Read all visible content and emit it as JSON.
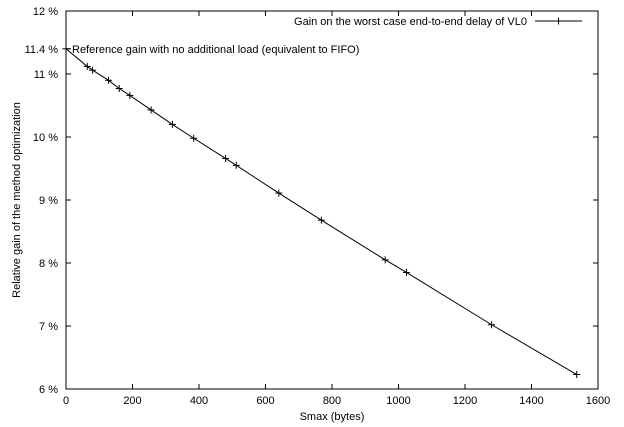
{
  "chart_data": {
    "type": "line",
    "title": "",
    "xlabel": "Smax (bytes)",
    "ylabel": "Relative gain of the method optimization",
    "xlim": [
      0,
      1600
    ],
    "ylim": [
      6,
      12
    ],
    "x_ticks": [
      0,
      200,
      400,
      600,
      800,
      1000,
      1200,
      1400,
      1600
    ],
    "x_tick_labels": [
      "0",
      "200",
      "400",
      "600",
      "800",
      "1000",
      "1200",
      "1400",
      "1600"
    ],
    "y_ticks": [
      6,
      7,
      8,
      9,
      10,
      11,
      12
    ],
    "y_tick_labels": [
      "6 %",
      "7 %",
      "8 %",
      "9 %",
      "10 %",
      "11 %",
      "12 %"
    ],
    "extra_y_tick": {
      "value": 11.4,
      "label": "11.4 %"
    },
    "grid": false,
    "legend_position": "top-right",
    "series": [
      {
        "name": "Gain on the worst case end-to-end delay of VL0",
        "color": "#000000",
        "marker": "plus",
        "x": [
          0,
          64,
          80,
          128,
          160,
          192,
          256,
          320,
          384,
          480,
          512,
          640,
          768,
          960,
          1024,
          1280,
          1536
        ],
        "y": [
          11.4,
          11.12,
          11.06,
          10.9,
          10.77,
          10.66,
          10.43,
          10.2,
          9.98,
          9.66,
          9.55,
          9.11,
          8.68,
          8.05,
          7.85,
          7.02,
          6.23
        ]
      }
    ],
    "annotations": [
      {
        "text": "Reference gain with no additional load (equivalent to FIFO)",
        "x": 0,
        "y": 11.4
      }
    ]
  }
}
